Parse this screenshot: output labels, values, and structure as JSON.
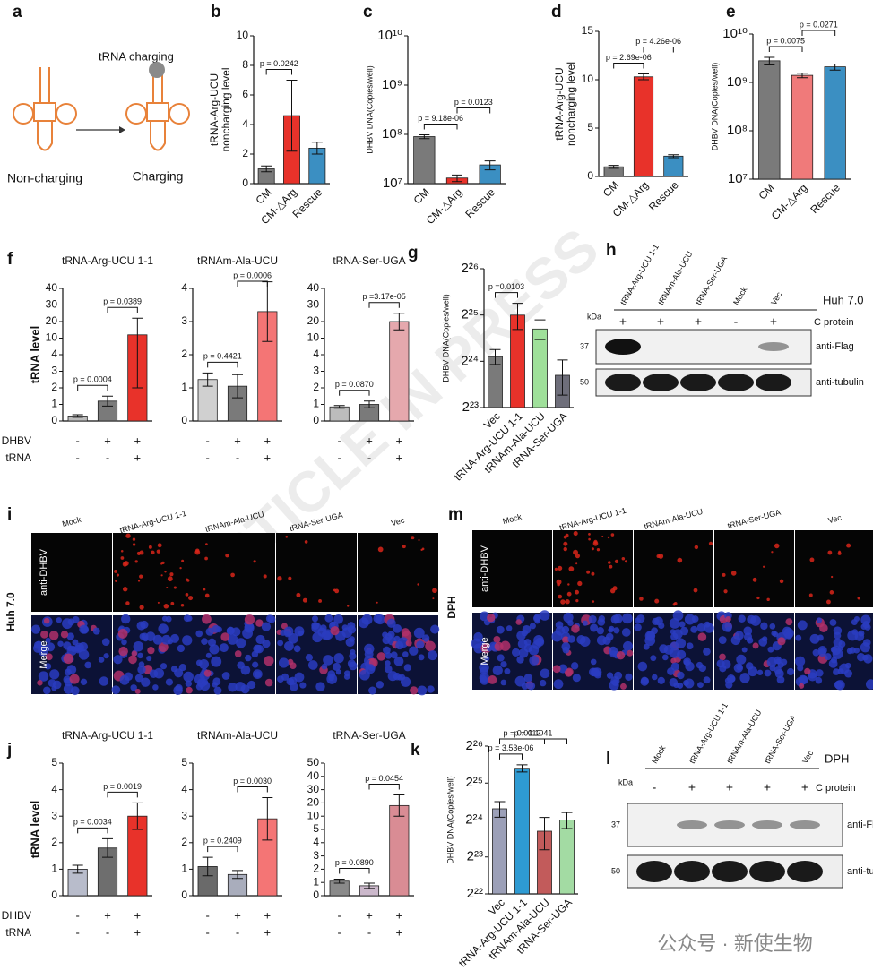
{
  "panel_a": {
    "panel": "a",
    "label_top": "tRNA charging",
    "left": "Non-charging",
    "right": "Charging"
  },
  "chart_data": [
    {
      "type": "bar",
      "panel": "b",
      "ylabel": [
        "tRNA-Arg-UCU",
        "noncharging level"
      ],
      "categories": [
        "CM",
        "CM-△Arg",
        "Rescue"
      ],
      "values": [
        1.0,
        4.6,
        2.4
      ],
      "errors": [
        0.2,
        2.4,
        0.4
      ],
      "colors": [
        "#7a7a7a",
        "#e8322a",
        "#3b8fc2"
      ],
      "ylim": [
        0,
        10
      ],
      "yticks": [
        0,
        2,
        4,
        6,
        8,
        10
      ],
      "comparisons": [
        {
          "pair": [
            0,
            1
          ],
          "label": "p = 0.0242"
        }
      ]
    },
    {
      "type": "bar",
      "panel": "c",
      "scale": "log",
      "ylabel": [
        "DHBV DNA(Copies/well)"
      ],
      "categories": [
        "CM",
        "CM-△Arg",
        "Rescue"
      ],
      "values": [
        90000000,
        13000000,
        24000000
      ],
      "errors": [
        8000000,
        2000000,
        5000000
      ],
      "colors": [
        "#7a7a7a",
        "#e8322a",
        "#3b8fc2"
      ],
      "ylim": [
        10000000,
        10000000000
      ],
      "yticks": [
        {
          "value": 10000000,
          "label": "10⁷"
        },
        {
          "value": 100000000,
          "label": "10⁸"
        },
        {
          "value": 1000000000,
          "label": "10⁹"
        },
        {
          "value": 10000000000,
          "label": "10¹⁰"
        }
      ],
      "comparisons": [
        {
          "pair": [
            0,
            1
          ],
          "label": "p = 9.18e-06"
        },
        {
          "pair": [
            1,
            2
          ],
          "label": "p = 0.0123"
        }
      ]
    },
    {
      "type": "bar",
      "panel": "d",
      "ylabel": [
        "tRNA-Arg-UCU",
        "noncharging level"
      ],
      "categories": [
        "CM",
        "CM-△Arg",
        "Rescue"
      ],
      "values": [
        1.0,
        10.3,
        2.1
      ],
      "errors": [
        0.15,
        0.3,
        0.15
      ],
      "colors": [
        "#7a7a7a",
        "#e8322a",
        "#3b8fc2"
      ],
      "ylim": [
        0,
        15
      ],
      "yticks": [
        0,
        5,
        10,
        15
      ],
      "comparisons": [
        {
          "pair": [
            0,
            1
          ],
          "label": "p = 2.69e-06"
        },
        {
          "pair": [
            1,
            2
          ],
          "label": "p = 4.26e-06"
        }
      ]
    },
    {
      "type": "bar",
      "panel": "e",
      "scale": "log",
      "ylabel": [
        "DHBV DNA(Copies/well)"
      ],
      "categories": [
        "CM",
        "CM-△Arg",
        "Rescue"
      ],
      "values": [
        2800000000,
        1400000000,
        2100000000
      ],
      "errors": [
        500000000,
        150000000,
        300000000
      ],
      "colors": [
        "#7a7a7a",
        "#f07a7a",
        "#3b8fc2"
      ],
      "ylim": [
        10000000,
        10000000000
      ],
      "yticks": [
        {
          "value": 10000000,
          "label": "10⁷"
        },
        {
          "value": 100000000,
          "label": "10⁸"
        },
        {
          "value": 1000000000,
          "label": "10⁹"
        },
        {
          "value": 10000000000,
          "label": "10¹⁰"
        }
      ],
      "comparisons": [
        {
          "pair": [
            0,
            1
          ],
          "label": "p = 0.0075"
        },
        {
          "pair": [
            1,
            2
          ],
          "label": "p = 0.0271"
        }
      ]
    },
    {
      "type": "bar",
      "panel": "f",
      "title": "tRNA-Arg-UCU 1-1",
      "ylabel": [
        "tRNA level"
      ],
      "scale": "broken",
      "values": [
        0.3,
        1.2,
        12
      ],
      "errors": [
        0.08,
        0.3,
        10
      ],
      "colors": [
        "#bcbcbc",
        "#7a7a7a",
        "#e8322a"
      ],
      "ylim": [
        0,
        40
      ],
      "yticks": [
        0,
        1,
        2,
        3,
        4,
        10,
        20,
        30,
        40
      ],
      "comparisons": [
        {
          "pair": [
            0,
            1
          ],
          "label": "p = 0.0004"
        },
        {
          "pair": [
            1,
            2
          ],
          "label": "p = 0.0389"
        }
      ],
      "rows": [
        {
          "name": "DHBV",
          "signs": [
            "-",
            "+",
            "+"
          ]
        },
        {
          "name": "tRNA",
          "signs": [
            "-",
            "-",
            "+"
          ]
        }
      ]
    },
    {
      "type": "bar",
      "title": "tRNAm-Ala-UCU",
      "values": [
        1.25,
        1.05,
        3.3
      ],
      "errors": [
        0.2,
        0.35,
        0.9
      ],
      "colors": [
        "#d0d0d0",
        "#7a7a7a",
        "#f47575"
      ],
      "ylim": [
        0,
        4
      ],
      "yticks": [
        0,
        1,
        2,
        3,
        4
      ],
      "comparisons": [
        {
          "pair": [
            0,
            1
          ],
          "label": "p = 0.4421"
        },
        {
          "pair": [
            1,
            2
          ],
          "label": "p = 0.0006"
        }
      ],
      "rows": [
        {
          "signs": [
            "-",
            "+",
            "+"
          ]
        },
        {
          "signs": [
            "-",
            "-",
            "+"
          ]
        }
      ]
    },
    {
      "type": "bar",
      "title": "tRNA-Ser-UGA",
      "scale": "broken",
      "values": [
        0.85,
        1.0,
        20
      ],
      "errors": [
        0.08,
        0.2,
        5
      ],
      "colors": [
        "#bcbcbc",
        "#7a7a7a",
        "#e5a8ad"
      ],
      "ylim": [
        0,
        40
      ],
      "yticks": [
        0,
        1,
        2,
        3,
        4,
        10,
        20,
        30,
        40
      ],
      "comparisons": [
        {
          "pair": [
            0,
            1
          ],
          "label": "p = 0.0870"
        },
        {
          "pair": [
            1,
            2
          ],
          "label": "p =3.17e-05"
        }
      ],
      "rows": [
        {
          "signs": [
            "-",
            "+",
            "+"
          ]
        },
        {
          "signs": [
            "-",
            "-",
            "+"
          ]
        }
      ]
    },
    {
      "type": "bar",
      "panel": "g",
      "scale": "log",
      "ylabel": [
        "DHBV DNA(Copies/well)"
      ],
      "categories": [
        "Vec",
        "tRNA-Arg-UCU 1-1",
        "tRNAm-Ala-UCU",
        "tRNA-Ser-UGA"
      ],
      "values": [
        18000000,
        33500000,
        27200000,
        13600000
      ],
      "errors": [
        2000000,
        6500000,
        4000000,
        3500000
      ],
      "colors": [
        "#7a7a7a",
        "#e8322a",
        "#9fe09a",
        "#6e6e7a"
      ],
      "ylim": [
        8388608,
        67108864
      ],
      "yticks": [
        {
          "value": 8388608,
          "label": "2²³"
        },
        {
          "value": 16777216,
          "label": "2²⁴"
        },
        {
          "value": 33554432,
          "label": "2²⁵"
        },
        {
          "value": 67108864,
          "label": "2²⁶"
        }
      ],
      "comparisons": [
        {
          "pair": [
            0,
            1
          ],
          "label": "p =0.0103"
        }
      ]
    },
    {
      "type": "bar",
      "panel": "j",
      "title": "tRNA-Arg-UCU 1-1",
      "ylabel": [
        "tRNA level"
      ],
      "values": [
        1.0,
        1.8,
        3.0
      ],
      "errors": [
        0.15,
        0.35,
        0.5
      ],
      "colors": [
        "#b8bccb",
        "#6e6e6e",
        "#e8322a"
      ],
      "ylim": [
        0,
        5
      ],
      "yticks": [
        0,
        1,
        2,
        3,
        4,
        5
      ],
      "comparisons": [
        {
          "pair": [
            0,
            1
          ],
          "label": "p = 0.0034"
        },
        {
          "pair": [
            1,
            2
          ],
          "label": "p = 0.0019"
        }
      ],
      "rows": [
        {
          "name": "DHBV",
          "signs": [
            "-",
            "+",
            "+"
          ]
        },
        {
          "name": "tRNA",
          "signs": [
            "-",
            "-",
            "+"
          ]
        }
      ]
    },
    {
      "type": "bar",
      "title": "tRNAm-Ala-UCU",
      "values": [
        1.1,
        0.8,
        2.9
      ],
      "errors": [
        0.35,
        0.15,
        0.8
      ],
      "colors": [
        "#6a6a6a",
        "#a9adbc",
        "#f47575"
      ],
      "ylim": [
        0,
        5
      ],
      "yticks": [
        0,
        1,
        2,
        3,
        4,
        5
      ],
      "comparisons": [
        {
          "pair": [
            0,
            1
          ],
          "label": "p = 0.2409"
        },
        {
          "pair": [
            1,
            2
          ],
          "label": "p = 0.0030"
        }
      ],
      "rows": [
        {
          "signs": [
            "-",
            "+",
            "+"
          ]
        },
        {
          "signs": [
            "-",
            "-",
            "+"
          ]
        }
      ]
    },
    {
      "type": "bar",
      "title": "tRNA-Ser-UGA",
      "scale": "broken",
      "values": [
        1.1,
        0.75,
        18
      ],
      "errors": [
        0.15,
        0.2,
        8
      ],
      "colors": [
        "#8a8a8a",
        "#cbb8cb",
        "#d98c94"
      ],
      "ylim": [
        0,
        50
      ],
      "yticks": [
        0,
        1,
        2,
        3,
        4,
        5,
        10,
        20,
        30,
        40,
        50
      ],
      "comparisons": [
        {
          "pair": [
            0,
            1
          ],
          "label": "p = 0.0890"
        },
        {
          "pair": [
            1,
            2
          ],
          "label": "p = 0.0454"
        }
      ],
      "rows": [
        {
          "signs": [
            "-",
            "+",
            "+"
          ]
        },
        {
          "signs": [
            "-",
            "-",
            "+"
          ]
        }
      ]
    },
    {
      "type": "bar",
      "panel": "k",
      "scale": "log",
      "ylabel": [
        "DHBV DNA(Copies/well)"
      ],
      "categories": [
        "Vec",
        "tRNA-Arg-UCU 1-1",
        "tRNAm-Ala-UCU",
        "tRNA-Ser-UGA"
      ],
      "values": [
        20700000,
        44300000,
        13600000,
        16800000
      ],
      "errors": [
        3000000,
        3000000,
        4000000,
        2500000
      ],
      "colors": [
        "#9ca0b8",
        "#2e9bd3",
        "#c25b5b",
        "#a3dba3"
      ],
      "ylim": [
        4194304,
        67108864
      ],
      "yticks": [
        {
          "value": 4194304,
          "label": "2²²"
        },
        {
          "value": 8388608,
          "label": "2²³"
        },
        {
          "value": 16777216,
          "label": "2²⁴"
        },
        {
          "value": 33554432,
          "label": "2²⁵"
        },
        {
          "value": 67108864,
          "label": "2²⁶"
        }
      ],
      "comparisons": [
        {
          "pair": [
            0,
            1
          ],
          "label": "p = 3.53e-06"
        },
        {
          "pair": [
            0,
            2
          ],
          "label": "p = 0.0112"
        },
        {
          "pair": [
            0,
            3
          ],
          "label": "p = 0.1041"
        }
      ]
    }
  ],
  "blots": [
    {
      "panel": "h",
      "lanes": [
        "tRNA-Arg-UCU 1-1",
        "tRNAm-Ala-UCU",
        "tRNA-Ser-UGA",
        "Mock",
        "Vec"
      ],
      "cell": "Huh 7.0",
      "row_label": "C protein",
      "signs": [
        "+",
        "+",
        "+",
        "-",
        "+"
      ],
      "kda": "kDa",
      "markers": [
        "37",
        "50"
      ],
      "antibodies": [
        "anti-Flag",
        "anti-tubulin"
      ]
    },
    {
      "panel": "l",
      "lanes": [
        "Mock",
        "tRNA-Arg-UCU 1-1",
        "tRNAm-Ala-UCU",
        "tRNA-Ser-UGA",
        "Vec"
      ],
      "cell": "DPH",
      "row_label": "C protein",
      "signs": [
        "-",
        "+",
        "+",
        "+",
        "+"
      ],
      "kda": "kDa",
      "markers": [
        "37",
        "50"
      ],
      "antibodies": [
        "anti-Flag",
        "anti-tubulin"
      ]
    }
  ],
  "micrographs": [
    {
      "panel": "i",
      "cell": "Huh 7.0",
      "columns": [
        "Mock",
        "tRNA-Arg-UCU 1-1",
        "tRNAm-Ala-UCU",
        "tRNA-Ser-UGA",
        "Vec"
      ],
      "rows": [
        "anti-DHBV",
        "Merge"
      ]
    },
    {
      "panel": "m",
      "cell": "DPH",
      "columns": [
        "Mock",
        "tRNA-Arg-UCU 1-1",
        "tRNAm-Ala-UCU",
        "tRNA-Ser-UGA",
        "Vec"
      ],
      "rows": [
        "anti-DHBV",
        "Merge"
      ]
    }
  ],
  "watermark": "ARTICLE IN PRESS",
  "footer": "公众号 · 新使生物"
}
